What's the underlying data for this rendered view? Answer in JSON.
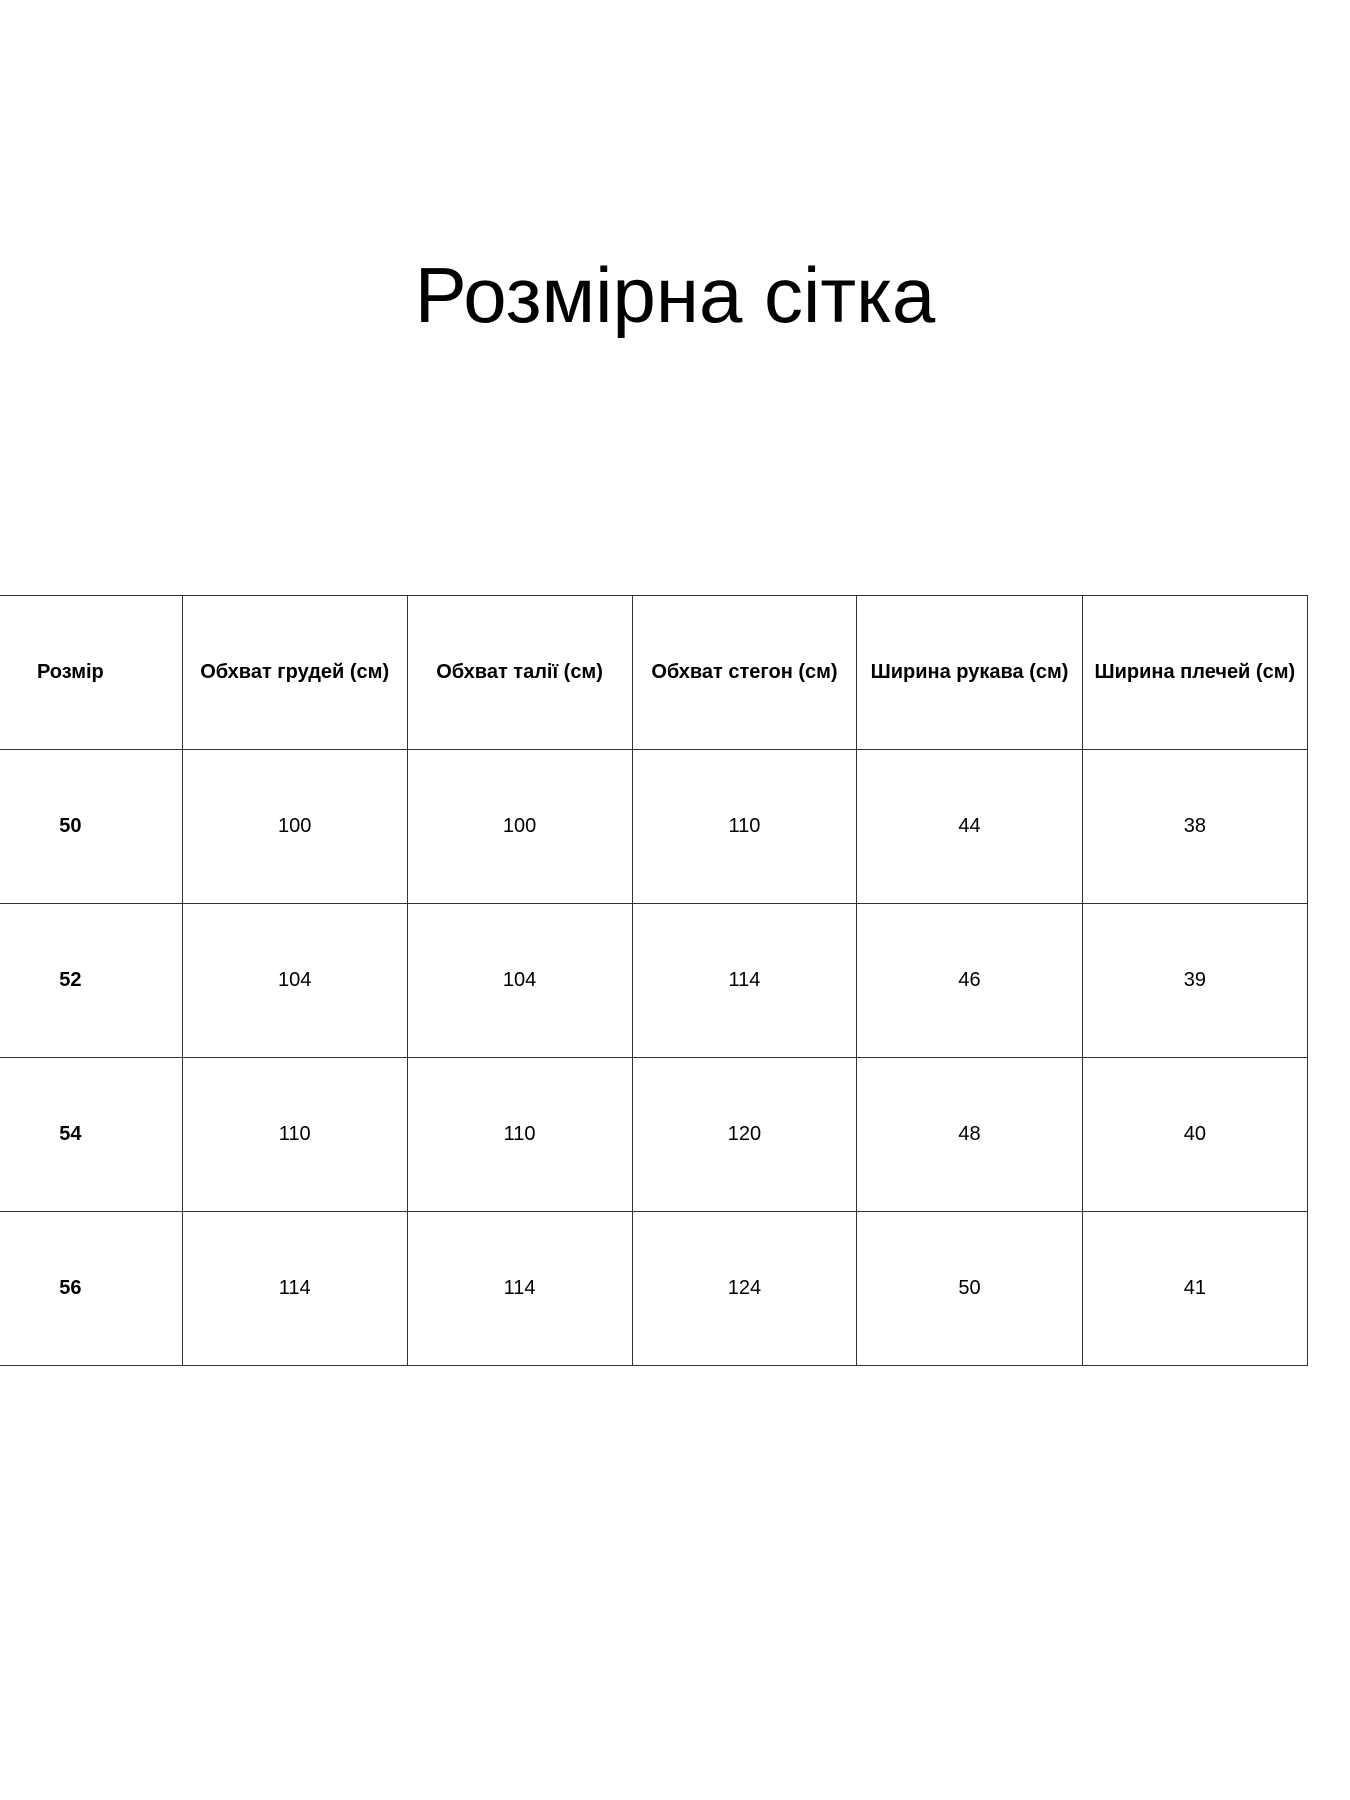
{
  "title": "Розмірна сітка",
  "table": {
    "headers": [
      "Розмір",
      "Обхват грудей (см)",
      "Обхват талії (см)",
      "Обхват стегон (см)",
      "Ширина рукава (см)",
      "Ширина плечей (см)"
    ],
    "rows": [
      [
        "50",
        "100",
        "100",
        "110",
        "44",
        "38"
      ],
      [
        "52",
        "104",
        "104",
        "114",
        "46",
        "39"
      ],
      [
        "54",
        "110",
        "110",
        "120",
        "48",
        "40"
      ],
      [
        "56",
        "114",
        "114",
        "124",
        "50",
        "41"
      ]
    ]
  }
}
